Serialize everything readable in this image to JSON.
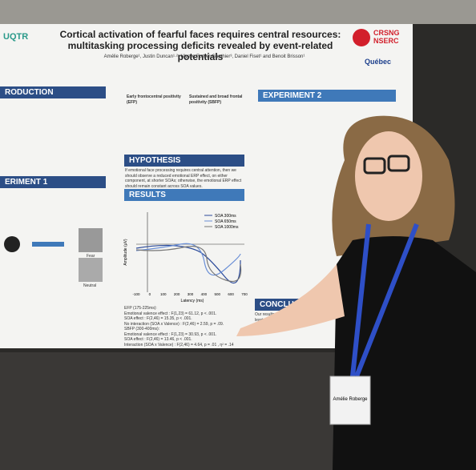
{
  "poster": {
    "title": "Cortical activation of fearful faces requires central resources: multitasking processing deficits revealed by event-related potentials",
    "authors": "Amélie Roberge¹, Justin Duncan¹·², Ulysse Fortier-Gauthier³, Daniel Fiset¹ and Benoit Brisson¹",
    "logos": {
      "left": "UQTR",
      "crsng": "CRSNG",
      "nserc": "NSERC",
      "quebec": "Québec"
    },
    "sections": {
      "introduction": "RODUCTION",
      "experiment1": "ERIMENT 1",
      "hypothesis": "HYPOTHESIS",
      "results": "RESULTS",
      "experiment2": "EXPERIMENT 2",
      "conclusion": "CONCLUSION"
    },
    "components": {
      "efp": "Early frontocentral positivity (EFP)",
      "sbfp": "Sustained and broad frontal positivity (SBFP)"
    },
    "hypothesis_text": "If emotional face processing requires central attention, then we should observe a reduced emotional ERP effect, on either component, at shorter SOAs; otherwise, the emotional ERP effect should remain constant across SOA values.",
    "plot": {
      "legend": [
        "SOA 300ms",
        "SOA 650ms",
        "SOA 1000ms"
      ],
      "x_label": "Latency (ms)",
      "y_label": "Amplitude (μV)",
      "x_tick_labels": [
        "-100",
        "0",
        "100",
        "200",
        "300",
        "400",
        "500",
        "600",
        "700"
      ]
    },
    "stats": [
      "EFP (175-225ms):",
      "Emotional valence effect : F(1,23) = 61.12, p < .001.",
      "SOA effect : F(2,46) = 15.35, p < .001.",
      "No interaction (SOA x Valence) : F(2,46) = 2.59, p = .09.",
      "SBFP (300-400ms):",
      "Emotional valence effect : F(1,23) = 30.93, p < .001.",
      "SOA effect : F(2,46) = 13.46, p < .001.",
      "Interaction (SOA x Valence) : F(2,46) = 4.64, p = .01 , η² = .14"
    ],
    "conclusion_text": "Our results demonstrate that, at the very least, ...",
    "faces": {
      "fear": "Fear",
      "neutral": "Neutral"
    }
  },
  "badge": {
    "name": "Amélie Roberge"
  }
}
